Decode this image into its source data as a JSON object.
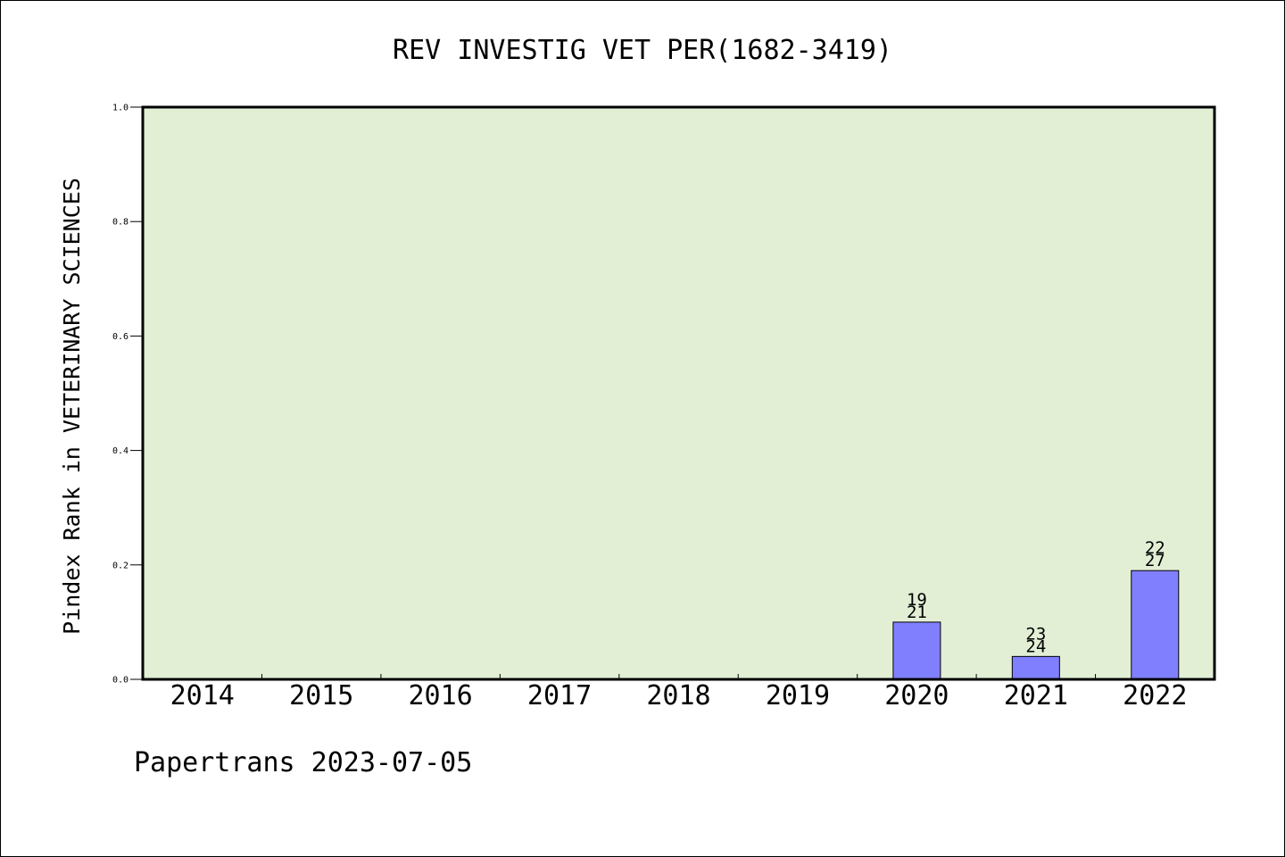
{
  "chart_data": {
    "type": "bar",
    "title": "REV INVESTIG VET PER(1682-3419)",
    "xlabel": "",
    "ylabel": "Pindex Rank in VETERINARY SCIENCES",
    "ylim": [
      0,
      1
    ],
    "yticks": [
      "0.0",
      "0.2",
      "0.4",
      "0.6",
      "0.8",
      "1.0"
    ],
    "categories": [
      "2014",
      "2015",
      "2016",
      "2017",
      "2018",
      "2019",
      "2020",
      "2021",
      "2022"
    ],
    "values": [
      null,
      null,
      null,
      null,
      null,
      null,
      0.1,
      0.04,
      0.19
    ],
    "bar_labels": [
      null,
      null,
      null,
      null,
      null,
      null,
      [
        "19",
        "21"
      ],
      [
        "23",
        "24"
      ],
      [
        "22",
        "27"
      ]
    ],
    "grid": false,
    "colors": {
      "plot_background": "#e2efd5",
      "bar_fill": "#8080ff",
      "bar_edge": "#000000"
    }
  },
  "footer": {
    "text": "Papertrans 2023-07-05"
  }
}
